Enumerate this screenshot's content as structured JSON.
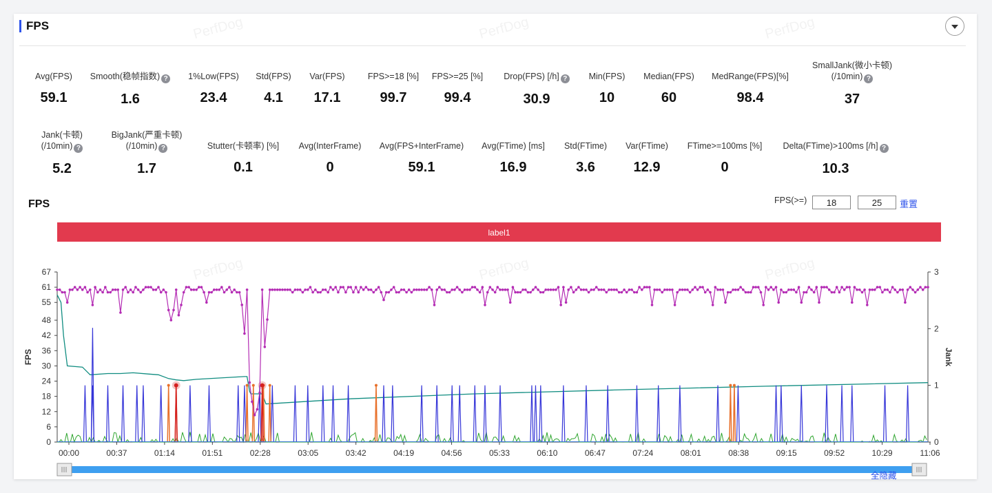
{
  "header": {
    "title": "FPS"
  },
  "metrics_row1": [
    {
      "label": "Avg(FPS)",
      "value": "59.1"
    },
    {
      "label": "Smooth(稳帧指数)",
      "value": "1.6",
      "help": true
    },
    {
      "label": "1%Low(FPS)",
      "value": "23.4"
    },
    {
      "label": "Std(FPS)",
      "value": "4.1"
    },
    {
      "label": "Var(FPS)",
      "value": "17.1"
    },
    {
      "label": "FPS>=18 [%]",
      "value": "99.7"
    },
    {
      "label": "FPS>=25 [%]",
      "value": "99.4"
    },
    {
      "label": "Drop(FPS) [/h]",
      "value": "30.9",
      "help": true
    },
    {
      "label": "Min(FPS)",
      "value": "10"
    },
    {
      "label": "Median(FPS)",
      "value": "60"
    },
    {
      "label": "MedRange(FPS)[%]",
      "value": "98.4"
    },
    {
      "label": "SmallJank(微小卡顿)",
      "label2": "(/10min)",
      "value": "37",
      "help": true
    }
  ],
  "metrics_row2": [
    {
      "label": "Jank(卡顿)",
      "label2": "(/10min)",
      "value": "5.2",
      "help": true
    },
    {
      "label": "BigJank(严重卡顿)",
      "label2": "(/10min)",
      "value": "1.7",
      "help": true
    },
    {
      "label": "Stutter(卡顿率) [%]",
      "value": "0.1"
    },
    {
      "label": "Avg(InterFrame)",
      "value": "0"
    },
    {
      "label": "Avg(FPS+InterFrame)",
      "value": "59.1"
    },
    {
      "label": "Avg(FTime) [ms]",
      "value": "16.9"
    },
    {
      "label": "Std(FTime)",
      "value": "3.6"
    },
    {
      "label": "Var(FTime)",
      "value": "12.9"
    },
    {
      "label": "FTime>=100ms [%]",
      "value": "0"
    },
    {
      "label": "Delta(FTime)>100ms [/h]",
      "value": "10.3",
      "help": true
    }
  ],
  "help_glyph": "?",
  "chart_panel": {
    "title": "FPS",
    "threshold_label": "FPS(>=)",
    "threshold1": "18",
    "threshold2": "25",
    "reset_label": "重置",
    "hide_all_label": "全隐藏",
    "watermark": "PerfDog"
  },
  "chart_data": {
    "type": "line",
    "label_band": "label1",
    "y_left": {
      "label": "FPS",
      "ticks": [
        0,
        6,
        12,
        18,
        24,
        30,
        36,
        42,
        48,
        55,
        61,
        67
      ],
      "range": [
        0,
        67
      ]
    },
    "y_right": {
      "label": "Jank",
      "ticks": [
        0,
        1,
        2,
        3
      ],
      "range": [
        0,
        3
      ]
    },
    "x_ticks": [
      "00:00",
      "00:37",
      "01:14",
      "01:51",
      "02:28",
      "03:05",
      "03:42",
      "04:19",
      "04:56",
      "05:33",
      "06:10",
      "06:47",
      "07:24",
      "08:01",
      "08:38",
      "09:15",
      "09:52",
      "10:29",
      "11:06"
    ],
    "x_range_seconds": [
      0,
      688
    ],
    "series": [
      {
        "name": "FPS",
        "color": "#b42cb4",
        "axis": "left",
        "baseline": 60,
        "dips": [
          [
            8,
            55
          ],
          [
            28,
            54
          ],
          [
            50,
            51
          ],
          [
            88,
            52
          ],
          [
            90,
            48
          ],
          [
            92,
            52
          ],
          [
            96,
            50
          ],
          [
            98,
            54
          ],
          [
            118,
            55
          ],
          [
            150,
            55
          ],
          [
            258,
            56
          ],
          [
            265,
            53
          ],
          [
            298,
            54
          ],
          [
            338,
            54
          ],
          [
            358,
            55
          ],
          [
            398,
            54
          ],
          [
            402,
            55
          ],
          [
            425,
            55
          ],
          [
            465,
            55
          ],
          [
            470,
            54
          ],
          [
            488,
            54
          ],
          [
            518,
            54
          ],
          [
            528,
            55
          ],
          [
            558,
            54
          ],
          [
            570,
            55
          ],
          [
            588,
            55
          ],
          [
            602,
            55
          ],
          [
            628,
            55
          ],
          [
            640,
            54
          ],
          [
            670,
            55
          ]
        ],
        "collapse": {
          "start": 145,
          "end": 168,
          "min": 10
        }
      },
      {
        "name": "Smooth",
        "color": "#2ea52e",
        "axis": "right",
        "level": 0.08
      },
      {
        "name": "1%Low(FPS)",
        "color": "#0f8c80",
        "axis": "left",
        "points": [
          [
            0,
            58
          ],
          [
            3,
            55
          ],
          [
            5,
            42
          ],
          [
            8,
            30
          ],
          [
            20,
            29.5
          ],
          [
            26,
            26.5
          ],
          [
            40,
            27
          ],
          [
            50,
            27
          ],
          [
            60,
            27.3
          ],
          [
            72,
            26.8
          ],
          [
            80,
            26.5
          ],
          [
            88,
            25
          ],
          [
            94,
            24.5
          ],
          [
            100,
            24.2
          ],
          [
            110,
            24.7
          ],
          [
            148,
            25.8
          ],
          [
            150,
            25.8
          ],
          [
            152,
            20
          ],
          [
            153,
            19
          ],
          [
            162,
            19
          ],
          [
            165,
            15
          ],
          [
            230,
            17
          ],
          [
            330,
            19
          ],
          [
            440,
            20.5
          ],
          [
            560,
            22
          ],
          [
            688,
            23.4
          ]
        ]
      },
      {
        "name": "SmallJank",
        "color": "#3535d8",
        "axis": "right",
        "spikes": [
          22,
          28,
          40,
          52,
          63,
          68,
          82,
          105,
          120,
          143,
          148,
          160,
          170,
          188,
          198,
          210,
          218,
          230,
          258,
          265,
          288,
          300,
          312,
          318,
          330,
          338,
          350,
          375,
          378,
          382,
          400,
          418,
          435,
          458,
          475,
          492,
          522,
          538,
          568,
          572,
          588,
          608,
          620,
          628,
          654,
          672
        ]
      },
      {
        "name": "Jank",
        "color": "#e8702a",
        "axis": "right",
        "spikes": [
          88,
          94,
          150,
          155,
          163,
          168,
          252,
          532,
          535
        ]
      },
      {
        "name": "BigJank",
        "color": "#d42020",
        "axis": "right",
        "spikes": [
          94,
          162
        ]
      },
      {
        "name": "Stutter",
        "color": "#3a7bd5",
        "axis": "right",
        "level": 0
      },
      {
        "name": "InterFrame",
        "color": "#2ec4d0",
        "axis": "right",
        "level": 0
      }
    ]
  }
}
